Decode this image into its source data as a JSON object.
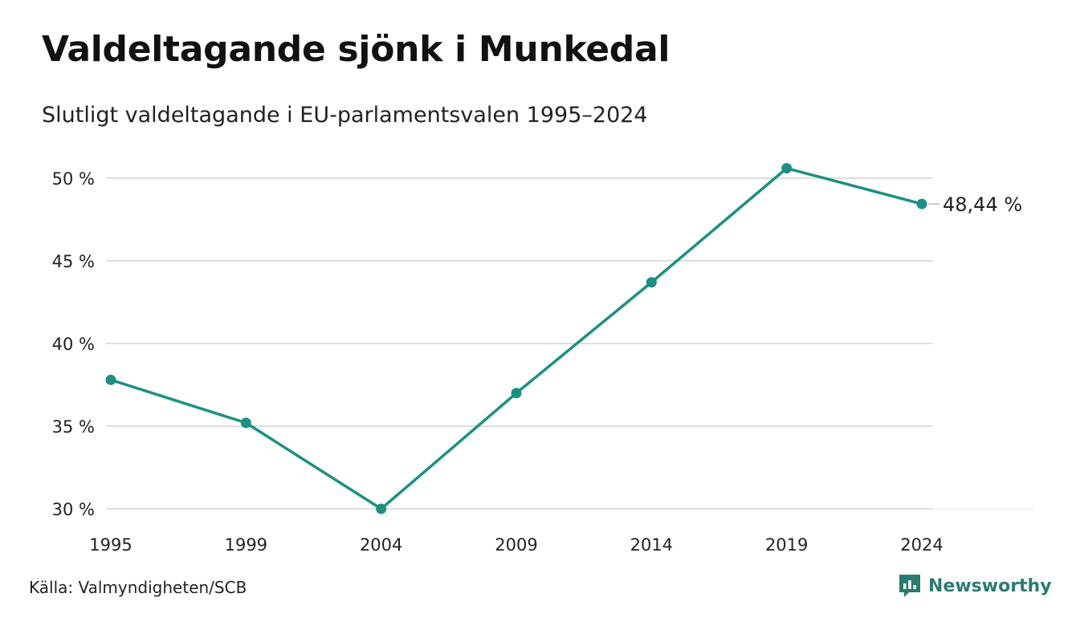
{
  "title": "Valdeltagande sjönk i Munkedal",
  "subtitle": "Slutligt valdeltagande i EU-parlamentsvalen 1995–2024",
  "source": "Källa: Valmyndigheten/SCB",
  "brand": {
    "name": "Newsworthy",
    "icon": "newsworthy-logo-icon",
    "color": "#2b7c70"
  },
  "colors": {
    "line": "#1b9183",
    "grid": "#dedede",
    "text": "#222222"
  },
  "chart_data": {
    "type": "line",
    "x": [
      "1995",
      "1999",
      "2004",
      "2009",
      "2014",
      "2019",
      "2024"
    ],
    "series": [
      {
        "values": [
          37.8,
          35.2,
          30.0,
          37.0,
          43.7,
          50.6,
          48.44
        ]
      }
    ],
    "ylim": [
      30,
      50
    ],
    "yticks": [
      30,
      35,
      40,
      45,
      50
    ],
    "ytick_labels": [
      "30 %",
      "35 %",
      "40 %",
      "45 %",
      "50 %"
    ],
    "end_label": "48,44 %",
    "grid": true,
    "legend": "none",
    "xlabel": "",
    "ylabel": ""
  }
}
